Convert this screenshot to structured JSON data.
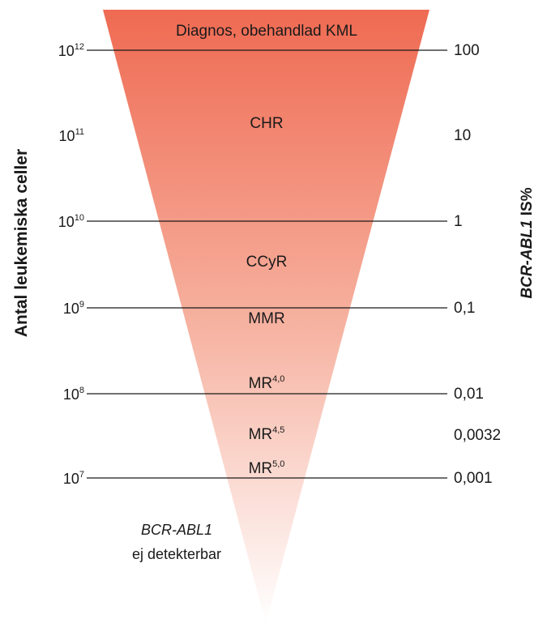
{
  "colors": {
    "top": "#ef6a52",
    "bottom": "#ffffff",
    "line": "#1a1a1a"
  },
  "axis_left_label": "Antal leukemiska celler",
  "axis_right_label_italic": "BCR-ABL1",
  "axis_right_label_suffix": " IS%",
  "levels": [
    {
      "base": "10",
      "exp": "12",
      "right": "100",
      "line": true
    },
    {
      "base": "10",
      "exp": "11",
      "right": "10",
      "line": false
    },
    {
      "base": "10",
      "exp": "10",
      "right": "1",
      "line": true
    },
    {
      "base": "10",
      "exp": "9",
      "right": "0,1",
      "line": true
    },
    {
      "base": "10",
      "exp": "8",
      "right": "0,01",
      "line": true
    },
    {
      "base": "",
      "exp": "",
      "right": "0,0032",
      "line": false
    },
    {
      "base": "10",
      "exp": "7",
      "right": "0,001",
      "line": true
    }
  ],
  "zones": [
    {
      "label": "Diagnos, obehandlad KML",
      "sup": ""
    },
    {
      "label": "CHR",
      "sup": ""
    },
    {
      "label": "CCyR",
      "sup": ""
    },
    {
      "label": "MMR",
      "sup": ""
    },
    {
      "label": "MR",
      "sup": "4,0"
    },
    {
      "label": "MR",
      "sup": "4,5"
    },
    {
      "label": "MR",
      "sup": "5,0"
    }
  ],
  "undetectable": {
    "line1": "BCR-ABL1",
    "line2": "ej detekterbar"
  }
}
